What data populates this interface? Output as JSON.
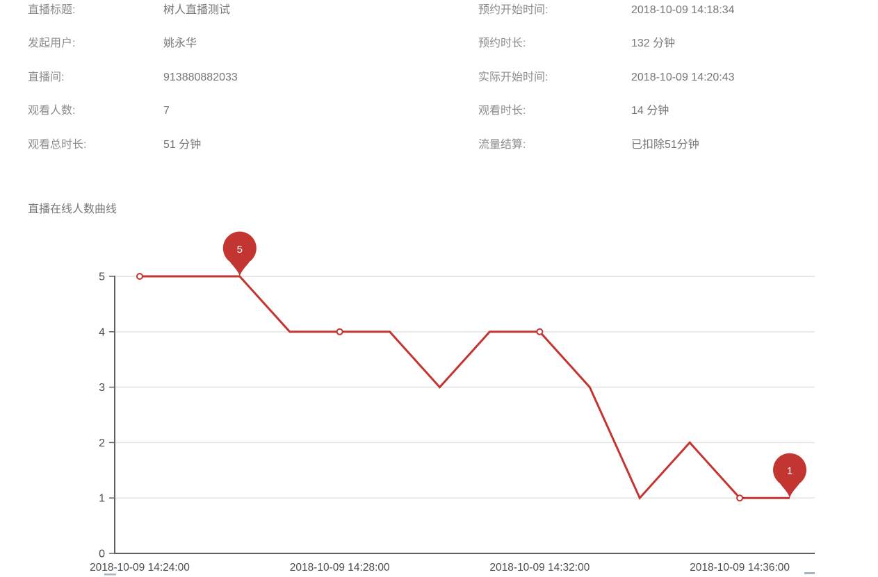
{
  "info": {
    "left": [
      {
        "label": "直播标题:",
        "value": "树人直播测试"
      },
      {
        "label": "发起用户:",
        "value": "姚永华"
      },
      {
        "label": "直播间:",
        "value": "913880882033"
      },
      {
        "label": "观看人数:",
        "value": "7"
      },
      {
        "label": "观看总时长:",
        "value": "51 分钟"
      }
    ],
    "right": [
      {
        "label": "预约开始时间:",
        "value": "2018-10-09 14:18:34"
      },
      {
        "label": "预约时长:",
        "value": "132 分钟"
      },
      {
        "label": "实际开始时间:",
        "value": "2018-10-09 14:20:43"
      },
      {
        "label": "观看时长:",
        "value": "14 分钟"
      },
      {
        "label": "流量结算:",
        "value": "已扣除51分钟"
      }
    ]
  },
  "chart_title": "直播在线人数曲线",
  "chart_data": {
    "type": "line",
    "title": "直播在线人数曲线",
    "x": [
      "2018-10-09 14:24:00",
      "2018-10-09 14:25:00",
      "2018-10-09 14:26:00",
      "2018-10-09 14:27:00",
      "2018-10-09 14:28:00",
      "2018-10-09 14:29:00",
      "2018-10-09 14:30:00",
      "2018-10-09 14:31:00",
      "2018-10-09 14:32:00",
      "2018-10-09 14:33:00",
      "2018-10-09 14:34:00",
      "2018-10-09 14:35:00",
      "2018-10-09 14:36:00",
      "2018-10-09 14:37:00"
    ],
    "values": [
      5,
      5,
      5,
      4,
      4,
      4,
      3,
      4,
      4,
      3,
      1,
      2,
      1,
      1
    ],
    "x_tick_label_indices": [
      0,
      4,
      8,
      12
    ],
    "x_tick_labels": [
      "2018-10-09 14:24:00",
      "2018-10-09 14:28:00",
      "2018-10-09 14:32:00",
      "2018-10-09 14:36:00"
    ],
    "symbol_indices": [
      0,
      4,
      8,
      12
    ],
    "y_ticks": [
      0,
      1,
      2,
      3,
      4,
      5
    ],
    "ylim": [
      0,
      5
    ],
    "grid": true,
    "legend": "none",
    "line_color": "#c23531",
    "mark_points": [
      {
        "kind": "max",
        "label": "5",
        "index": 2
      },
      {
        "kind": "min",
        "label": "1",
        "index": 13
      }
    ]
  }
}
